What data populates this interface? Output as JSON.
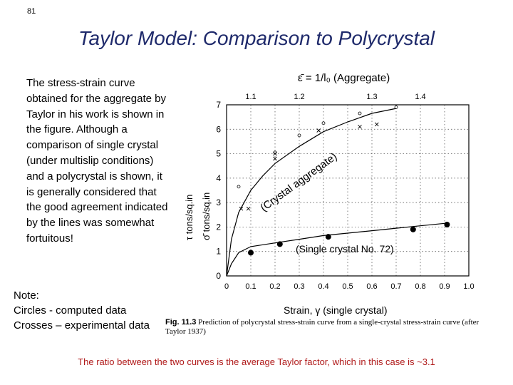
{
  "slide_number": "81",
  "title": "Taylor Model: Comparison to Polycrystal",
  "body_text": "The stress-strain curve obtained for the aggregate by Taylor in his work is shown in the figure. Although a comparison of single crystal (under multislip conditions) and a polycrystal is shown, it is generally considered that the good agreement indicated by the lines was somewhat fortuitous!",
  "note": {
    "heading": "Note:",
    "line1": "Circles -  computed data",
    "line2": "Crosses – experimental data"
  },
  "footer": "The ratio between the two curves is the average Taylor factor, which in this case is ~3.1",
  "caption": {
    "fig_label": "Fig. 11.3",
    "text": "Prediction of polycrystal stress-strain curve from a single-crystal stress-strain curve (after Taylor 1937)"
  },
  "chart_data": {
    "type": "line",
    "xlabel": "Strain, γ (single  crystal)",
    "top_axis_label": "ε̄ = 1/l₀ (Aggregate)",
    "ylabel_left": "τ  tons/sq.in",
    "ylabel_right": "σ̄  tons/sq.in",
    "x_ticks": [
      "0",
      "0.1",
      "0.2",
      "0.3",
      "0.4",
      "0.5",
      "0.6",
      "0.7",
      "0.8",
      "0.9",
      "1.0"
    ],
    "y_ticks": [
      "0",
      "1",
      "2",
      "3",
      "4",
      "5",
      "6",
      "7"
    ],
    "top_ticks": [
      "1.1",
      "1.2",
      "1.3",
      "1.4"
    ],
    "xlim": [
      0,
      1.0
    ],
    "ylim": [
      0,
      7
    ],
    "grid": true,
    "series": [
      {
        "name": "Crystal aggregate",
        "label": "(Crystal  aggregate)",
        "curve": [
          [
            0.0,
            0.0
          ],
          [
            0.02,
            1.5
          ],
          [
            0.05,
            2.6
          ],
          [
            0.1,
            3.5
          ],
          [
            0.15,
            4.1
          ],
          [
            0.2,
            4.6
          ],
          [
            0.3,
            5.3
          ],
          [
            0.4,
            5.9
          ],
          [
            0.5,
            6.3
          ],
          [
            0.6,
            6.65
          ],
          [
            0.7,
            6.85
          ]
        ],
        "computed": [
          [
            0.05,
            3.65
          ],
          [
            0.2,
            5.05
          ],
          [
            0.3,
            5.75
          ],
          [
            0.4,
            6.25
          ],
          [
            0.55,
            6.65
          ],
          [
            0.7,
            6.9
          ]
        ],
        "experimental": [
          [
            0.06,
            2.75
          ],
          [
            0.09,
            2.75
          ],
          [
            0.2,
            4.8
          ],
          [
            0.2,
            5.0
          ],
          [
            0.38,
            5.95
          ],
          [
            0.55,
            6.1
          ],
          [
            0.62,
            6.2
          ]
        ]
      },
      {
        "name": "Single crystal No. 72",
        "label": "(Single  crystal  No. 72)",
        "curve": [
          [
            0.0,
            0.0
          ],
          [
            0.02,
            0.5
          ],
          [
            0.05,
            0.95
          ],
          [
            0.1,
            1.2
          ],
          [
            0.2,
            1.35
          ],
          [
            0.3,
            1.5
          ],
          [
            0.4,
            1.65
          ],
          [
            0.5,
            1.75
          ],
          [
            0.6,
            1.85
          ],
          [
            0.7,
            1.95
          ],
          [
            0.8,
            2.05
          ],
          [
            0.9,
            2.15
          ]
        ],
        "computed": [
          [
            0.1,
            0.95
          ],
          [
            0.22,
            1.3
          ],
          [
            0.42,
            1.6
          ],
          [
            0.77,
            1.9
          ],
          [
            0.91,
            2.1
          ]
        ]
      }
    ]
  }
}
